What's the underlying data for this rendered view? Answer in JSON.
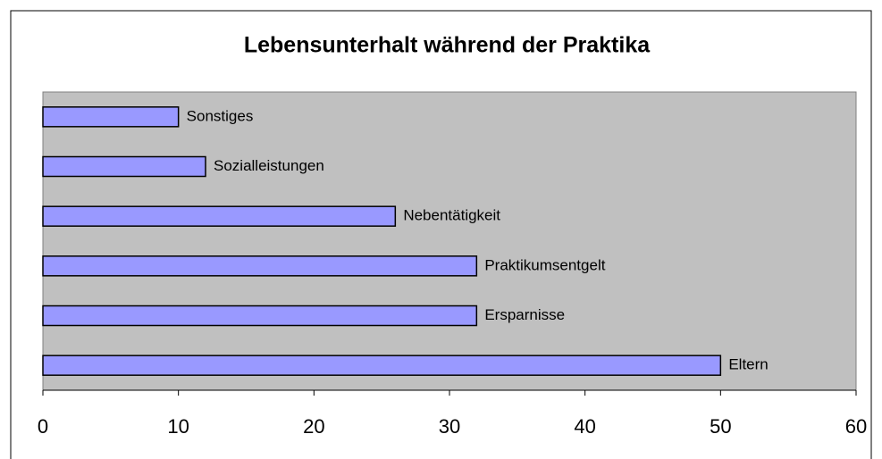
{
  "chart_data": {
    "type": "bar",
    "orientation": "horizontal",
    "title": "Lebensunterhalt während der Praktika",
    "categories": [
      "Eltern",
      "Ersparnisse",
      "Praktikumsentgelt",
      "Nebentätigkeit",
      "Sozialleistungen",
      "Sonstiges"
    ],
    "values": [
      50,
      32,
      32,
      26,
      12,
      10
    ],
    "color": "#9999ff",
    "xlim": [
      0,
      60
    ],
    "xticks": [
      0,
      10,
      20,
      30,
      40,
      50,
      60
    ],
    "grid": false
  }
}
